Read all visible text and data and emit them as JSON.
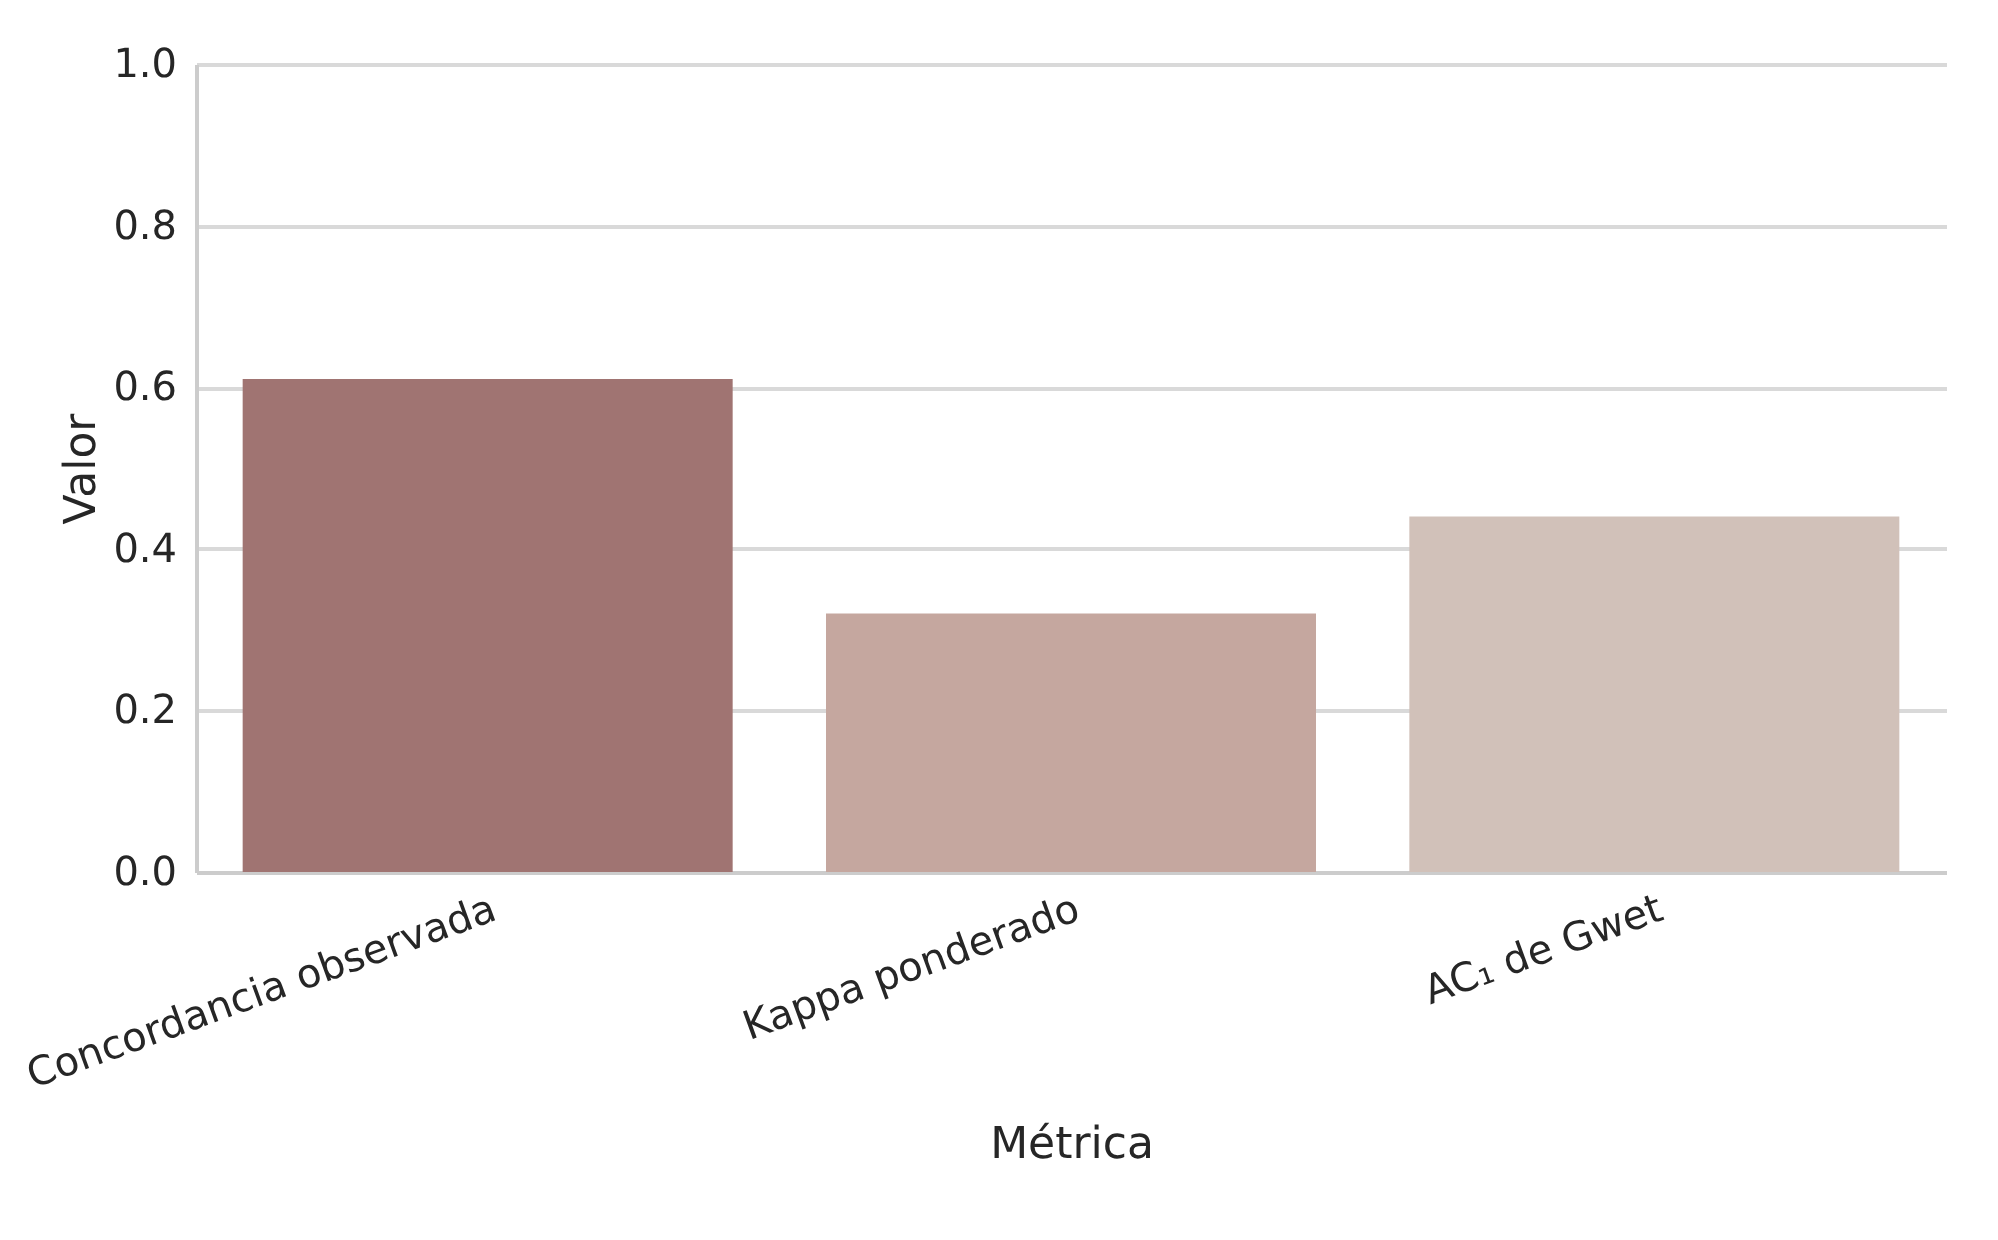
{
  "chart_data": {
    "type": "bar",
    "xlabel": "Métrica",
    "ylabel": "Valor",
    "categories": [
      "Concordancia observada",
      "Kappa ponderado",
      "AC₁ de Gwet"
    ],
    "values": [
      0.61,
      0.32,
      0.44
    ],
    "colors": [
      "#a07472",
      "#c5a79f",
      "#d1c1b9"
    ],
    "ylim": [
      0,
      1
    ],
    "yticks": [
      {
        "value": 0,
        "label": "0.0"
      },
      {
        "value": 0.2,
        "label": "0.2"
      },
      {
        "value": 0.4,
        "label": "0.4"
      },
      {
        "value": 0.6,
        "label": "0.6"
      },
      {
        "value": 0.8,
        "label": "0.8"
      },
      {
        "value": 1,
        "label": "1.0"
      }
    ],
    "grid": "y",
    "legend": false
  }
}
